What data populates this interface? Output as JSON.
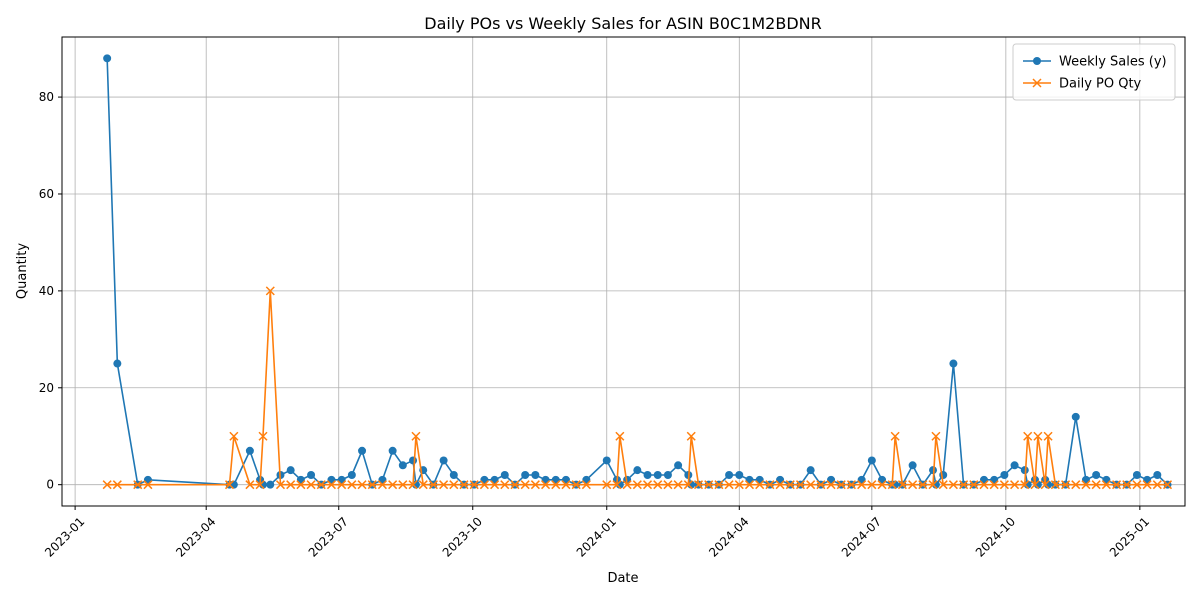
{
  "chart_data": {
    "type": "line",
    "title": "Daily POs vs Weekly Sales for ASIN B0C1M2BDNR",
    "xlabel": "Date",
    "ylabel": "Quantity",
    "xlim": [
      "2022-12-23",
      "2025-02-01"
    ],
    "ylim": [
      -4.4,
      92.4
    ],
    "grid": true,
    "legend_position": "upper right",
    "x_ticks": [
      {
        "date": "2023-01-01",
        "label": "2023-01"
      },
      {
        "date": "2023-04-01",
        "label": "2023-04"
      },
      {
        "date": "2023-07-01",
        "label": "2023-07"
      },
      {
        "date": "2023-10-01",
        "label": "2023-10"
      },
      {
        "date": "2024-01-01",
        "label": "2024-01"
      },
      {
        "date": "2024-04-01",
        "label": "2024-04"
      },
      {
        "date": "2024-07-01",
        "label": "2024-07"
      },
      {
        "date": "2024-10-01",
        "label": "2024-10"
      },
      {
        "date": "2025-01-01",
        "label": "2025-01"
      }
    ],
    "y_ticks": [
      0,
      20,
      40,
      60,
      80
    ],
    "series": [
      {
        "name": "Weekly Sales (y)",
        "color": "#1f77b4",
        "marker": "circle",
        "points": [
          [
            "2023-01-23",
            88
          ],
          [
            "2023-01-30",
            25
          ],
          [
            "2023-02-13",
            0
          ],
          [
            "2023-02-20",
            1
          ],
          [
            "2023-04-17",
            0
          ],
          [
            "2023-04-20",
            0
          ],
          [
            "2023-05-01",
            7
          ],
          [
            "2023-05-08",
            1
          ],
          [
            "2023-05-10",
            0
          ],
          [
            "2023-05-15",
            0
          ],
          [
            "2023-05-22",
            2
          ],
          [
            "2023-05-29",
            3
          ],
          [
            "2023-06-05",
            1
          ],
          [
            "2023-06-12",
            2
          ],
          [
            "2023-06-19",
            0
          ],
          [
            "2023-06-26",
            1
          ],
          [
            "2023-07-03",
            1
          ],
          [
            "2023-07-10",
            2
          ],
          [
            "2023-07-17",
            7
          ],
          [
            "2023-07-24",
            0
          ],
          [
            "2023-07-31",
            1
          ],
          [
            "2023-08-07",
            7
          ],
          [
            "2023-08-14",
            4
          ],
          [
            "2023-08-21",
            5
          ],
          [
            "2023-08-23",
            0
          ],
          [
            "2023-08-28",
            3
          ],
          [
            "2023-09-04",
            0
          ],
          [
            "2023-09-11",
            5
          ],
          [
            "2023-09-18",
            2
          ],
          [
            "2023-09-25",
            0
          ],
          [
            "2023-10-02",
            0
          ],
          [
            "2023-10-09",
            1
          ],
          [
            "2023-10-16",
            1
          ],
          [
            "2023-10-23",
            2
          ],
          [
            "2023-10-30",
            0
          ],
          [
            "2023-11-06",
            2
          ],
          [
            "2023-11-13",
            2
          ],
          [
            "2023-11-20",
            1
          ],
          [
            "2023-11-27",
            1
          ],
          [
            "2023-12-04",
            1
          ],
          [
            "2023-12-11",
            0
          ],
          [
            "2023-12-18",
            1
          ],
          [
            "2024-01-01",
            5
          ],
          [
            "2024-01-08",
            1
          ],
          [
            "2024-01-10",
            0
          ],
          [
            "2024-01-15",
            1
          ],
          [
            "2024-01-22",
            3
          ],
          [
            "2024-01-29",
            2
          ],
          [
            "2024-02-05",
            2
          ],
          [
            "2024-02-12",
            2
          ],
          [
            "2024-02-19",
            4
          ],
          [
            "2024-02-26",
            2
          ],
          [
            "2024-02-28",
            0
          ],
          [
            "2024-03-04",
            0
          ],
          [
            "2024-03-11",
            0
          ],
          [
            "2024-03-18",
            0
          ],
          [
            "2024-03-25",
            2
          ],
          [
            "2024-04-01",
            2
          ],
          [
            "2024-04-08",
            1
          ],
          [
            "2024-04-15",
            1
          ],
          [
            "2024-04-22",
            0
          ],
          [
            "2024-04-29",
            1
          ],
          [
            "2024-05-06",
            0
          ],
          [
            "2024-05-13",
            0
          ],
          [
            "2024-05-20",
            3
          ],
          [
            "2024-05-27",
            0
          ],
          [
            "2024-06-03",
            1
          ],
          [
            "2024-06-10",
            0
          ],
          [
            "2024-06-17",
            0
          ],
          [
            "2024-06-24",
            1
          ],
          [
            "2024-07-01",
            5
          ],
          [
            "2024-07-08",
            1
          ],
          [
            "2024-07-15",
            0
          ],
          [
            "2024-07-17",
            0
          ],
          [
            "2024-07-22",
            0
          ],
          [
            "2024-07-29",
            4
          ],
          [
            "2024-08-05",
            0
          ],
          [
            "2024-08-12",
            3
          ],
          [
            "2024-08-14",
            0
          ],
          [
            "2024-08-19",
            2
          ],
          [
            "2024-08-26",
            25
          ],
          [
            "2024-09-02",
            0
          ],
          [
            "2024-09-09",
            0
          ],
          [
            "2024-09-16",
            1
          ],
          [
            "2024-09-23",
            1
          ],
          [
            "2024-09-30",
            2
          ],
          [
            "2024-10-07",
            4
          ],
          [
            "2024-10-14",
            3
          ],
          [
            "2024-10-16",
            0
          ],
          [
            "2024-10-21",
            1
          ],
          [
            "2024-10-23",
            0
          ],
          [
            "2024-10-28",
            1
          ],
          [
            "2024-10-30",
            0
          ],
          [
            "2024-11-04",
            0
          ],
          [
            "2024-11-11",
            0
          ],
          [
            "2024-11-18",
            14
          ],
          [
            "2024-11-25",
            1
          ],
          [
            "2024-12-02",
            2
          ],
          [
            "2024-12-09",
            1
          ],
          [
            "2024-12-16",
            0
          ],
          [
            "2024-12-23",
            0
          ],
          [
            "2024-12-30",
            2
          ],
          [
            "2025-01-06",
            1
          ],
          [
            "2025-01-13",
            2
          ],
          [
            "2025-01-20",
            0
          ]
        ]
      },
      {
        "name": "Daily PO Qty",
        "color": "#ff7f0e",
        "marker": "x",
        "points": [
          [
            "2023-01-23",
            0
          ],
          [
            "2023-01-30",
            0
          ],
          [
            "2023-02-13",
            0
          ],
          [
            "2023-02-20",
            0
          ],
          [
            "2023-04-17",
            0
          ],
          [
            "2023-04-20",
            10
          ],
          [
            "2023-05-01",
            0
          ],
          [
            "2023-05-08",
            0
          ],
          [
            "2023-05-10",
            10
          ],
          [
            "2023-05-15",
            40
          ],
          [
            "2023-05-22",
            0
          ],
          [
            "2023-05-29",
            0
          ],
          [
            "2023-06-05",
            0
          ],
          [
            "2023-06-12",
            0
          ],
          [
            "2023-06-19",
            0
          ],
          [
            "2023-06-26",
            0
          ],
          [
            "2023-07-03",
            0
          ],
          [
            "2023-07-10",
            0
          ],
          [
            "2023-07-17",
            0
          ],
          [
            "2023-07-24",
            0
          ],
          [
            "2023-07-31",
            0
          ],
          [
            "2023-08-07",
            0
          ],
          [
            "2023-08-14",
            0
          ],
          [
            "2023-08-21",
            0
          ],
          [
            "2023-08-23",
            10
          ],
          [
            "2023-08-28",
            0
          ],
          [
            "2023-09-04",
            0
          ],
          [
            "2023-09-11",
            0
          ],
          [
            "2023-09-18",
            0
          ],
          [
            "2023-09-25",
            0
          ],
          [
            "2023-10-02",
            0
          ],
          [
            "2023-10-09",
            0
          ],
          [
            "2023-10-16",
            0
          ],
          [
            "2023-10-23",
            0
          ],
          [
            "2023-10-30",
            0
          ],
          [
            "2023-11-06",
            0
          ],
          [
            "2023-11-13",
            0
          ],
          [
            "2023-11-20",
            0
          ],
          [
            "2023-11-27",
            0
          ],
          [
            "2023-12-04",
            0
          ],
          [
            "2023-12-11",
            0
          ],
          [
            "2023-12-18",
            0
          ],
          [
            "2024-01-01",
            0
          ],
          [
            "2024-01-08",
            0
          ],
          [
            "2024-01-10",
            10
          ],
          [
            "2024-01-15",
            0
          ],
          [
            "2024-01-22",
            0
          ],
          [
            "2024-01-29",
            0
          ],
          [
            "2024-02-05",
            0
          ],
          [
            "2024-02-12",
            0
          ],
          [
            "2024-02-19",
            0
          ],
          [
            "2024-02-26",
            0
          ],
          [
            "2024-02-28",
            10
          ],
          [
            "2024-03-04",
            0
          ],
          [
            "2024-03-11",
            0
          ],
          [
            "2024-03-18",
            0
          ],
          [
            "2024-03-25",
            0
          ],
          [
            "2024-04-01",
            0
          ],
          [
            "2024-04-08",
            0
          ],
          [
            "2024-04-15",
            0
          ],
          [
            "2024-04-22",
            0
          ],
          [
            "2024-04-29",
            0
          ],
          [
            "2024-05-06",
            0
          ],
          [
            "2024-05-13",
            0
          ],
          [
            "2024-05-20",
            0
          ],
          [
            "2024-05-27",
            0
          ],
          [
            "2024-06-03",
            0
          ],
          [
            "2024-06-10",
            0
          ],
          [
            "2024-06-17",
            0
          ],
          [
            "2024-06-24",
            0
          ],
          [
            "2024-07-01",
            0
          ],
          [
            "2024-07-08",
            0
          ],
          [
            "2024-07-15",
            0
          ],
          [
            "2024-07-17",
            10
          ],
          [
            "2024-07-22",
            0
          ],
          [
            "2024-07-29",
            0
          ],
          [
            "2024-08-05",
            0
          ],
          [
            "2024-08-12",
            0
          ],
          [
            "2024-08-14",
            10
          ],
          [
            "2024-08-19",
            0
          ],
          [
            "2024-08-26",
            0
          ],
          [
            "2024-09-02",
            0
          ],
          [
            "2024-09-09",
            0
          ],
          [
            "2024-09-16",
            0
          ],
          [
            "2024-09-23",
            0
          ],
          [
            "2024-09-30",
            0
          ],
          [
            "2024-10-07",
            0
          ],
          [
            "2024-10-14",
            0
          ],
          [
            "2024-10-16",
            10
          ],
          [
            "2024-10-21",
            0
          ],
          [
            "2024-10-23",
            10
          ],
          [
            "2024-10-28",
            0
          ],
          [
            "2024-10-30",
            10
          ],
          [
            "2024-11-04",
            0
          ],
          [
            "2024-11-11",
            0
          ],
          [
            "2024-11-18",
            0
          ],
          [
            "2024-11-25",
            0
          ],
          [
            "2024-12-02",
            0
          ],
          [
            "2024-12-09",
            0
          ],
          [
            "2024-12-16",
            0
          ],
          [
            "2024-12-23",
            0
          ],
          [
            "2024-12-30",
            0
          ],
          [
            "2025-01-06",
            0
          ],
          [
            "2025-01-13",
            0
          ],
          [
            "2025-01-20",
            0
          ]
        ]
      }
    ]
  }
}
